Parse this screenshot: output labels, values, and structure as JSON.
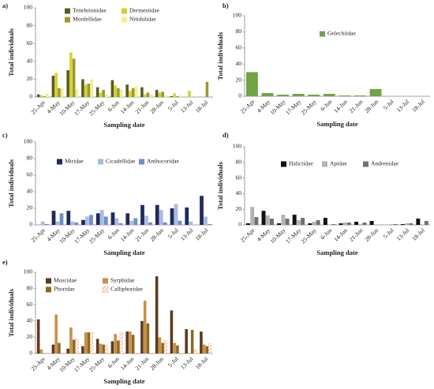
{
  "chart_data": [
    {
      "type": "bar",
      "panel_label": "a)",
      "ylabel": "Total individuals",
      "xlabel": "Sampling date",
      "categories": [
        "25-Apr",
        "4-May",
        "10-May",
        "17-May",
        "25-May",
        "6-Jun",
        "14-Jun",
        "21-Jun",
        "28-Jun",
        "5-Jul",
        "13-Jul",
        "18-Jul"
      ],
      "series": [
        {
          "name": "Tenebrionidae",
          "color": "#5b5b1e",
          "values": [
            3,
            24,
            30,
            20,
            11,
            19,
            14,
            11,
            8,
            1,
            0,
            0
          ]
        },
        {
          "name": "Dermestidae",
          "color": "#d2d22e",
          "values": [
            2,
            27,
            50,
            14,
            5,
            13,
            7,
            3,
            5,
            4,
            7,
            0
          ]
        },
        {
          "name": "Mordellidae",
          "color": "#9a9a30",
          "values": [
            1,
            10,
            43,
            15,
            8,
            10,
            10,
            5,
            6,
            1,
            0,
            17
          ]
        },
        {
          "name": "Nitidulidae",
          "color": "#f2f08a",
          "values": [
            4,
            10,
            9,
            20,
            3,
            9,
            12,
            3,
            2,
            2,
            0,
            0
          ]
        }
      ],
      "ylim": [
        0,
        100
      ],
      "yticks": [
        0,
        20,
        40,
        60,
        80,
        100
      ]
    },
    {
      "type": "bar",
      "panel_label": "b)",
      "ylabel": "Total individuals",
      "xlabel": "Sampling date",
      "categories": [
        "25-Apr",
        "4-May",
        "10-May",
        "17-May",
        "25-May",
        "6-Jun",
        "14-Jun",
        "21-Jun",
        "28-Jun",
        "5-Jul",
        "13-Jul",
        "18-Jul"
      ],
      "series": [
        {
          "name": "Gelechiidae",
          "color": "#72a444",
          "values": [
            30,
            4,
            2,
            3,
            2,
            3,
            1,
            1,
            9,
            0,
            0,
            0
          ]
        }
      ],
      "ylim": [
        0,
        100
      ],
      "yticks": [
        0,
        20,
        40,
        60,
        80,
        100
      ]
    },
    {
      "type": "bar",
      "panel_label": "c)",
      "ylabel": "Total individuals",
      "xlabel": "Sampling date",
      "categories": [
        "25-Apr",
        "4-May",
        "10-May",
        "17-May",
        "25-May",
        "6-Jun",
        "14-Jun",
        "21-Jun",
        "28-Jun",
        "5-Jul",
        "13-Jul",
        "18-Jul"
      ],
      "series": [
        {
          "name": "Miridae",
          "color": "#1f2a5c",
          "values": [
            0,
            17,
            17,
            6,
            14,
            15,
            14,
            24,
            24,
            20,
            21,
            35
          ]
        },
        {
          "name": "Cicadellidae",
          "color": "#aabbe2",
          "values": [
            4,
            4,
            4,
            10,
            18,
            8,
            5,
            11,
            18,
            25,
            4,
            10
          ]
        },
        {
          "name": "Anthocoridae",
          "color": "#6b8fd0",
          "values": [
            1,
            14,
            3,
            12,
            10,
            2,
            8,
            3,
            3,
            5,
            0,
            1
          ]
        }
      ],
      "ylim": [
        0,
        100
      ],
      "yticks": [
        0,
        20,
        40,
        60,
        80,
        100
      ]
    },
    {
      "type": "bar",
      "panel_label": "d)",
      "ylabel": "Total individuals",
      "xlabel": "Sampling date",
      "categories": [
        "25-Apr",
        "4-May",
        "10-May",
        "17-May",
        "25-May",
        "6-Jun",
        "14-Jun",
        "21-Jun",
        "28-Jun",
        "5-Jul",
        "13-Jul",
        "18-Jul"
      ],
      "series": [
        {
          "name": "Halictidae",
          "color": "#111111",
          "values": [
            2,
            18,
            2,
            13,
            2,
            9,
            2,
            4,
            5,
            0,
            1,
            8
          ]
        },
        {
          "name": "Apidae",
          "color": "#b4b4b4",
          "values": [
            23,
            12,
            13,
            6,
            4,
            0,
            3,
            1,
            0,
            1,
            2,
            0
          ]
        },
        {
          "name": "Andrenidae",
          "color": "#707070",
          "values": [
            10,
            8,
            8,
            9,
            6,
            1,
            3,
            3,
            0,
            1,
            2,
            5
          ]
        }
      ],
      "ylim": [
        0,
        100
      ],
      "yticks": [
        0,
        20,
        40,
        60,
        80,
        100
      ]
    },
    {
      "type": "bar",
      "panel_label": "e)",
      "ylabel": "Total individuals",
      "xlabel": "Sampling date",
      "categories": [
        "25-Apr",
        "4-May",
        "10-May",
        "17-May",
        "25-May",
        "6-Jun",
        "14-Jun",
        "21-Jun",
        "28-Jun",
        "5-Jul",
        "13-Jul",
        "18-Jul"
      ],
      "series": [
        {
          "name": "Muscidae",
          "color": "#5c3a1e",
          "values": [
            42,
            11,
            6,
            9,
            18,
            15,
            27,
            40,
            95,
            53,
            30,
            27
          ]
        },
        {
          "name": "Syrphidae",
          "color": "#c8904a",
          "values": [
            5,
            48,
            32,
            26,
            12,
            24,
            27,
            65,
            20,
            13,
            0,
            11
          ]
        },
        {
          "name": "Phoridae",
          "color": "#8a6a20",
          "values": [
            0,
            13,
            17,
            26,
            11,
            16,
            23,
            37,
            13,
            10,
            29,
            9
          ]
        },
        {
          "name": "Calliphoridae",
          "color": "#f0a070",
          "pattern": "hatched",
          "values": [
            0,
            0,
            18,
            26,
            10,
            26,
            0,
            0,
            16,
            0,
            5,
            12
          ]
        }
      ],
      "ylim": [
        0,
        100
      ],
      "yticks": [
        0,
        20,
        40,
        60,
        80,
        100
      ]
    }
  ]
}
